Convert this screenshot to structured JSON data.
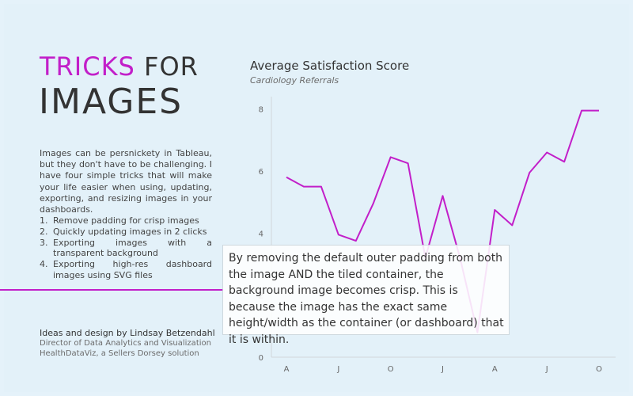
{
  "headline": {
    "accent": "TRICKS",
    "rest": "FOR",
    "line2": "IMAGES"
  },
  "intro": "Images can be persnickety in Tableau, but they don't have to be challenging. I have four simple tricks that will make your life easier when using, updating, exporting, and resizing images in your dashboards.",
  "tips": [
    {
      "num": "1.",
      "text": "Remove padding for crisp images"
    },
    {
      "num": "2.",
      "text": "Quickly updating images in 2 clicks"
    },
    {
      "num": "3.",
      "text": "Exporting images with a transparent background"
    },
    {
      "num": "4.",
      "text": "Exporting high-res dashboard images using SVG files"
    }
  ],
  "credits": {
    "name": "Ideas and design by Lindsay Betzendahl",
    "role": "Director of Data Analytics and Visualization",
    "org": "HealthDataViz, a Sellers Dorsey solution"
  },
  "callout": "By removing the default outer padding from both the image AND the tiled container, the background image becomes crisp. This is because the image has the exact same height/width as the container (or dashboard) that it is within.",
  "colors": {
    "accent": "#c21fc9",
    "background": "#e3f1f9",
    "text": "#333333"
  },
  "chart_data": {
    "type": "line",
    "title": "Average Satisfaction Score",
    "subtitle": "Cardiology Referrals",
    "xlabel": "",
    "ylabel": "",
    "ylim": [
      0,
      8.4
    ],
    "yticks": [
      0,
      2,
      4,
      6,
      8
    ],
    "x_tick_labels": [
      "A",
      "J",
      "O",
      "J",
      "A",
      "J",
      "O"
    ],
    "grid": false,
    "series": [
      {
        "color": "#c21fc9",
        "values": [
          5.8,
          5.5,
          5.5,
          3.95,
          3.75,
          4.95,
          6.45,
          6.25,
          3.2,
          5.2,
          3.2,
          0.8,
          4.75,
          4.25,
          5.95,
          6.6,
          6.3,
          7.95,
          7.95
        ]
      }
    ]
  }
}
